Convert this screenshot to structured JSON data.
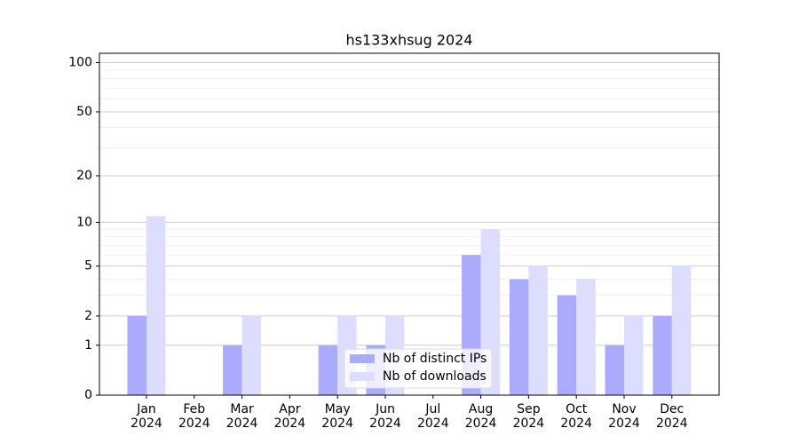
{
  "chart_data": {
    "type": "bar",
    "title": "hs133xhsug 2024",
    "categories": [
      "Jan\n2024",
      "Feb\n2024",
      "Mar\n2024",
      "Apr\n2024",
      "May\n2024",
      "Jun\n2024",
      "Jul\n2024",
      "Aug\n2024",
      "Sep\n2024",
      "Oct\n2024",
      "Nov\n2024",
      "Dec\n2024"
    ],
    "series": [
      {
        "name": "Nb of distinct IPs",
        "color": "#aaaaff",
        "values": [
          2,
          0,
          1,
          0,
          1,
          1,
          0,
          6,
          4,
          3,
          1,
          2
        ]
      },
      {
        "name": "Nb of downloads",
        "color": "#ddddff",
        "values": [
          11,
          0,
          2,
          0,
          2,
          2,
          0,
          9,
          5,
          4,
          2,
          5
        ]
      }
    ],
    "yscale": "log1p",
    "ylim": [
      0,
      114
    ],
    "yticks": [
      0,
      1,
      2,
      5,
      10,
      20,
      50,
      100
    ],
    "yminorticks": [
      3,
      4,
      6,
      7,
      8,
      9,
      30,
      40,
      60,
      70,
      80,
      90
    ],
    "grid": true,
    "legend": "lower center"
  }
}
